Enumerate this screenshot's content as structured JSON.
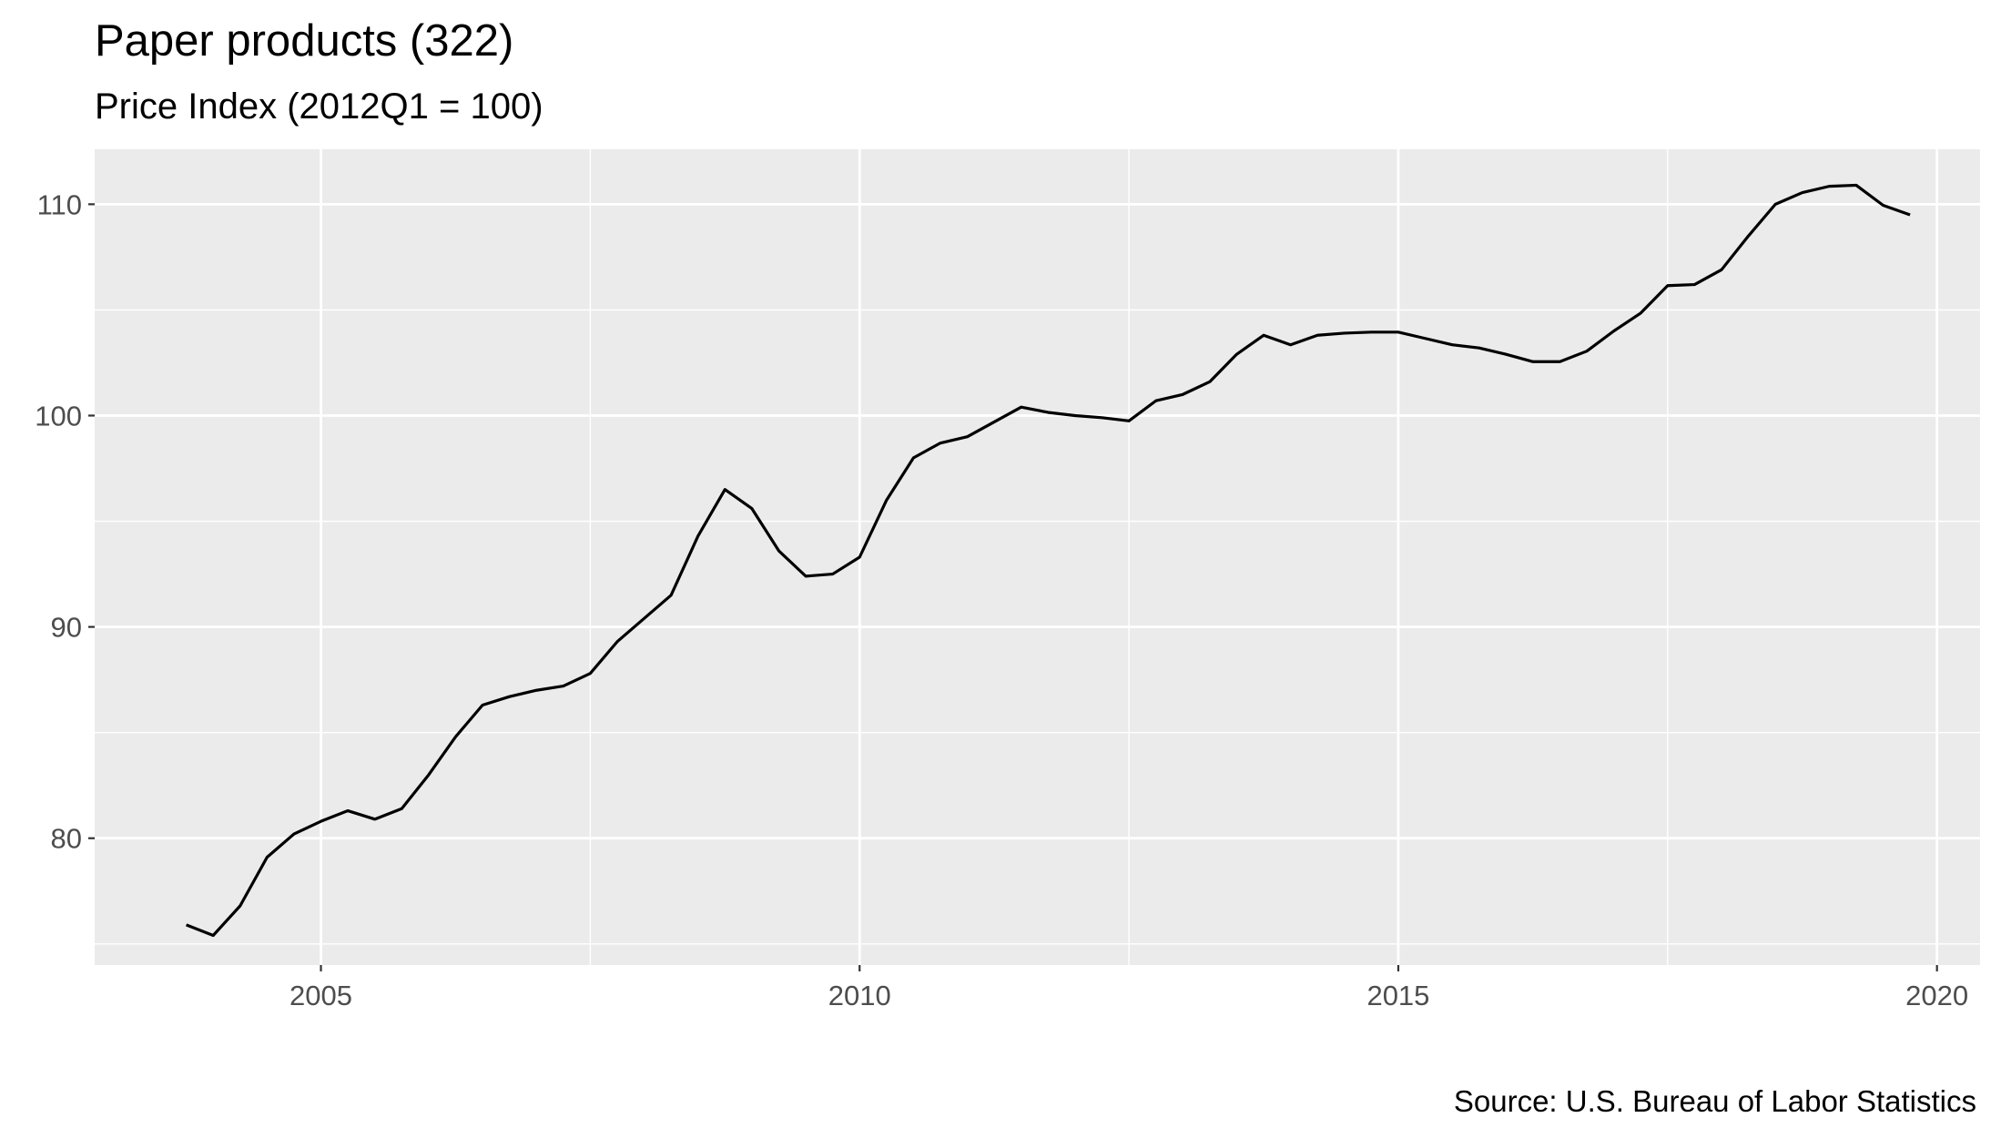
{
  "chart_data": {
    "type": "line",
    "title": "Paper products (322)",
    "subtitle": "Price Index (2012Q1 = 100)",
    "caption": "Source: U.S. Bureau of Labor Statistics",
    "xlabel": "",
    "ylabel": "",
    "xlim": [
      2002.9,
      2020.4
    ],
    "ylim": [
      74.0,
      112.6
    ],
    "x_ticks": [
      2005,
      2010,
      2015,
      2020
    ],
    "x_tick_labels": [
      "2005",
      "2010",
      "2015",
      "2020"
    ],
    "y_ticks": [
      80,
      90,
      100,
      110
    ],
    "y_tick_labels": [
      "80",
      "90",
      "100",
      "110"
    ],
    "grid": true,
    "legend": "none",
    "colors": {
      "panel": "#ebebeb",
      "grid": "#ffffff",
      "line": "#000000"
    },
    "series": [
      {
        "x": [
          2003.75,
          2004.0,
          2004.25,
          2004.5,
          2004.75,
          2005.0,
          2005.25,
          2005.5,
          2005.75,
          2006.0,
          2006.25,
          2006.5,
          2006.75,
          2007.0,
          2007.25,
          2007.5,
          2007.75,
          2008.0,
          2008.25,
          2008.5,
          2008.75,
          2009.0,
          2009.25,
          2009.5,
          2009.75,
          2010.0,
          2010.25,
          2010.5,
          2010.75,
          2011.0,
          2011.25,
          2011.5,
          2011.75,
          2012.0,
          2012.25,
          2012.5,
          2012.75,
          2013.0,
          2013.25,
          2013.5,
          2013.75,
          2014.0,
          2014.25,
          2014.5,
          2014.75,
          2015.0,
          2015.25,
          2015.5,
          2015.75,
          2016.0,
          2016.25,
          2016.5,
          2016.75,
          2017.0,
          2017.25,
          2017.5,
          2017.75,
          2018.0,
          2018.25,
          2018.5,
          2018.75,
          2019.0,
          2019.25,
          2019.5,
          2019.75
        ],
        "values": [
          75.9,
          75.4,
          76.8,
          79.1,
          80.2,
          80.8,
          81.3,
          80.9,
          81.4,
          83.0,
          84.8,
          86.3,
          86.7,
          87.0,
          87.2,
          87.8,
          89.3,
          90.4,
          91.5,
          94.3,
          96.5,
          95.6,
          93.6,
          92.4,
          92.5,
          93.3,
          96.0,
          98.0,
          98.7,
          99.0,
          99.7,
          100.4,
          100.15,
          100.0,
          99.9,
          99.75,
          100.7,
          101.0,
          101.6,
          102.9,
          103.8,
          103.35,
          103.8,
          103.9,
          103.95,
          103.95,
          103.65,
          103.35,
          103.2,
          102.9,
          102.55,
          102.55,
          103.05,
          104.0,
          104.85,
          106.15,
          106.2,
          106.9,
          108.5,
          110.0,
          110.55,
          110.85,
          110.9,
          109.95,
          109.5
        ]
      }
    ]
  }
}
